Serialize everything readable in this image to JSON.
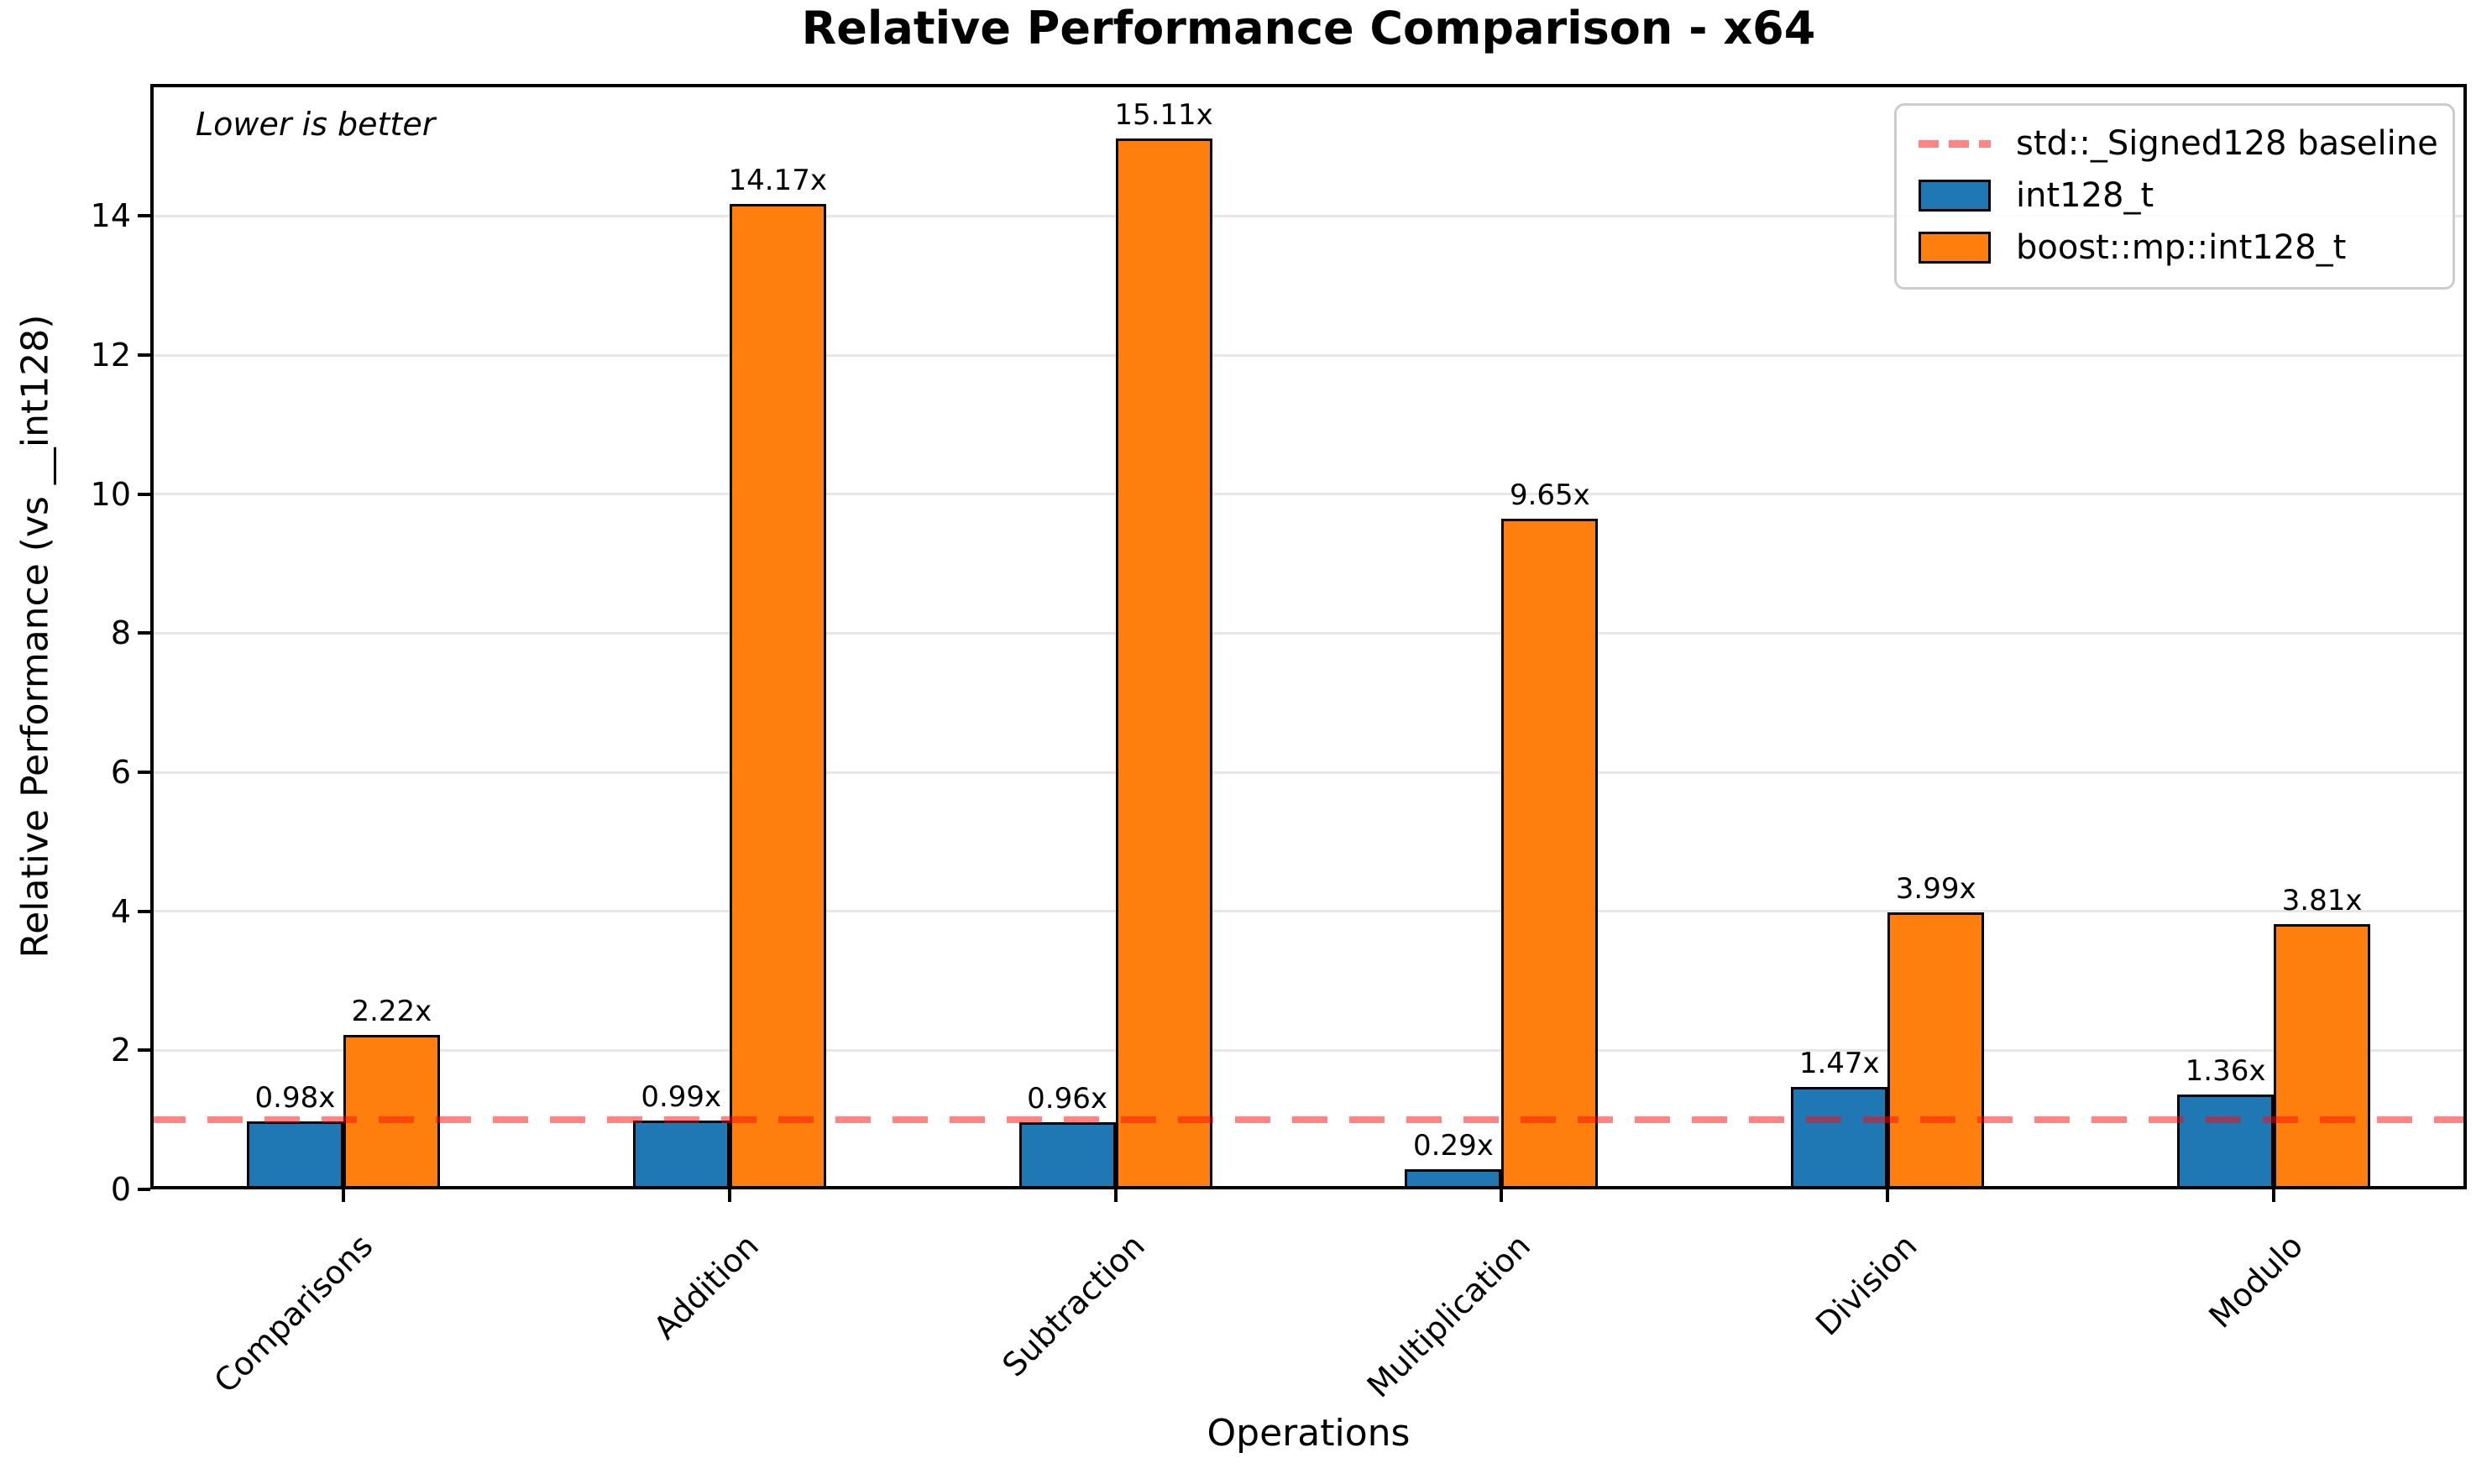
{
  "chart_data": {
    "type": "bar",
    "title": "Relative Performance Comparison - x64",
    "xlabel": "Operations",
    "ylabel": "Relative Performance (vs __int128)",
    "annotation": "Lower is better",
    "categories": [
      "Comparisons",
      "Addition",
      "Subtraction",
      "Multiplication",
      "Division",
      "Modulo"
    ],
    "series": [
      {
        "name": "int128_t",
        "color": "#1f77b4",
        "values": [
          0.98,
          0.99,
          0.96,
          0.29,
          1.47,
          1.36
        ],
        "labels": [
          "0.98x",
          "0.99x",
          "0.96x",
          "0.29x",
          "1.47x",
          "1.36x"
        ]
      },
      {
        "name": "boost::mp::int128_t",
        "color": "#ff7f0e",
        "values": [
          2.22,
          14.17,
          15.11,
          9.65,
          3.99,
          3.81
        ],
        "labels": [
          "2.22x",
          "14.17x",
          "15.11x",
          "9.65x",
          "3.99x",
          "3.81x"
        ]
      }
    ],
    "baseline": {
      "value": 1.0,
      "label": "std::_Signed128 baseline",
      "color": "#ff0000"
    },
    "ylim": [
      0,
      15.9
    ],
    "yticks": [
      0,
      2,
      4,
      6,
      8,
      10,
      12,
      14
    ],
    "grid": true,
    "legend_position": "upper right",
    "bar_width_units": 0.25,
    "colors": {
      "grid": "#e7e7e7",
      "bar_edge": "#000000",
      "legend_border": "#cccccc"
    }
  }
}
